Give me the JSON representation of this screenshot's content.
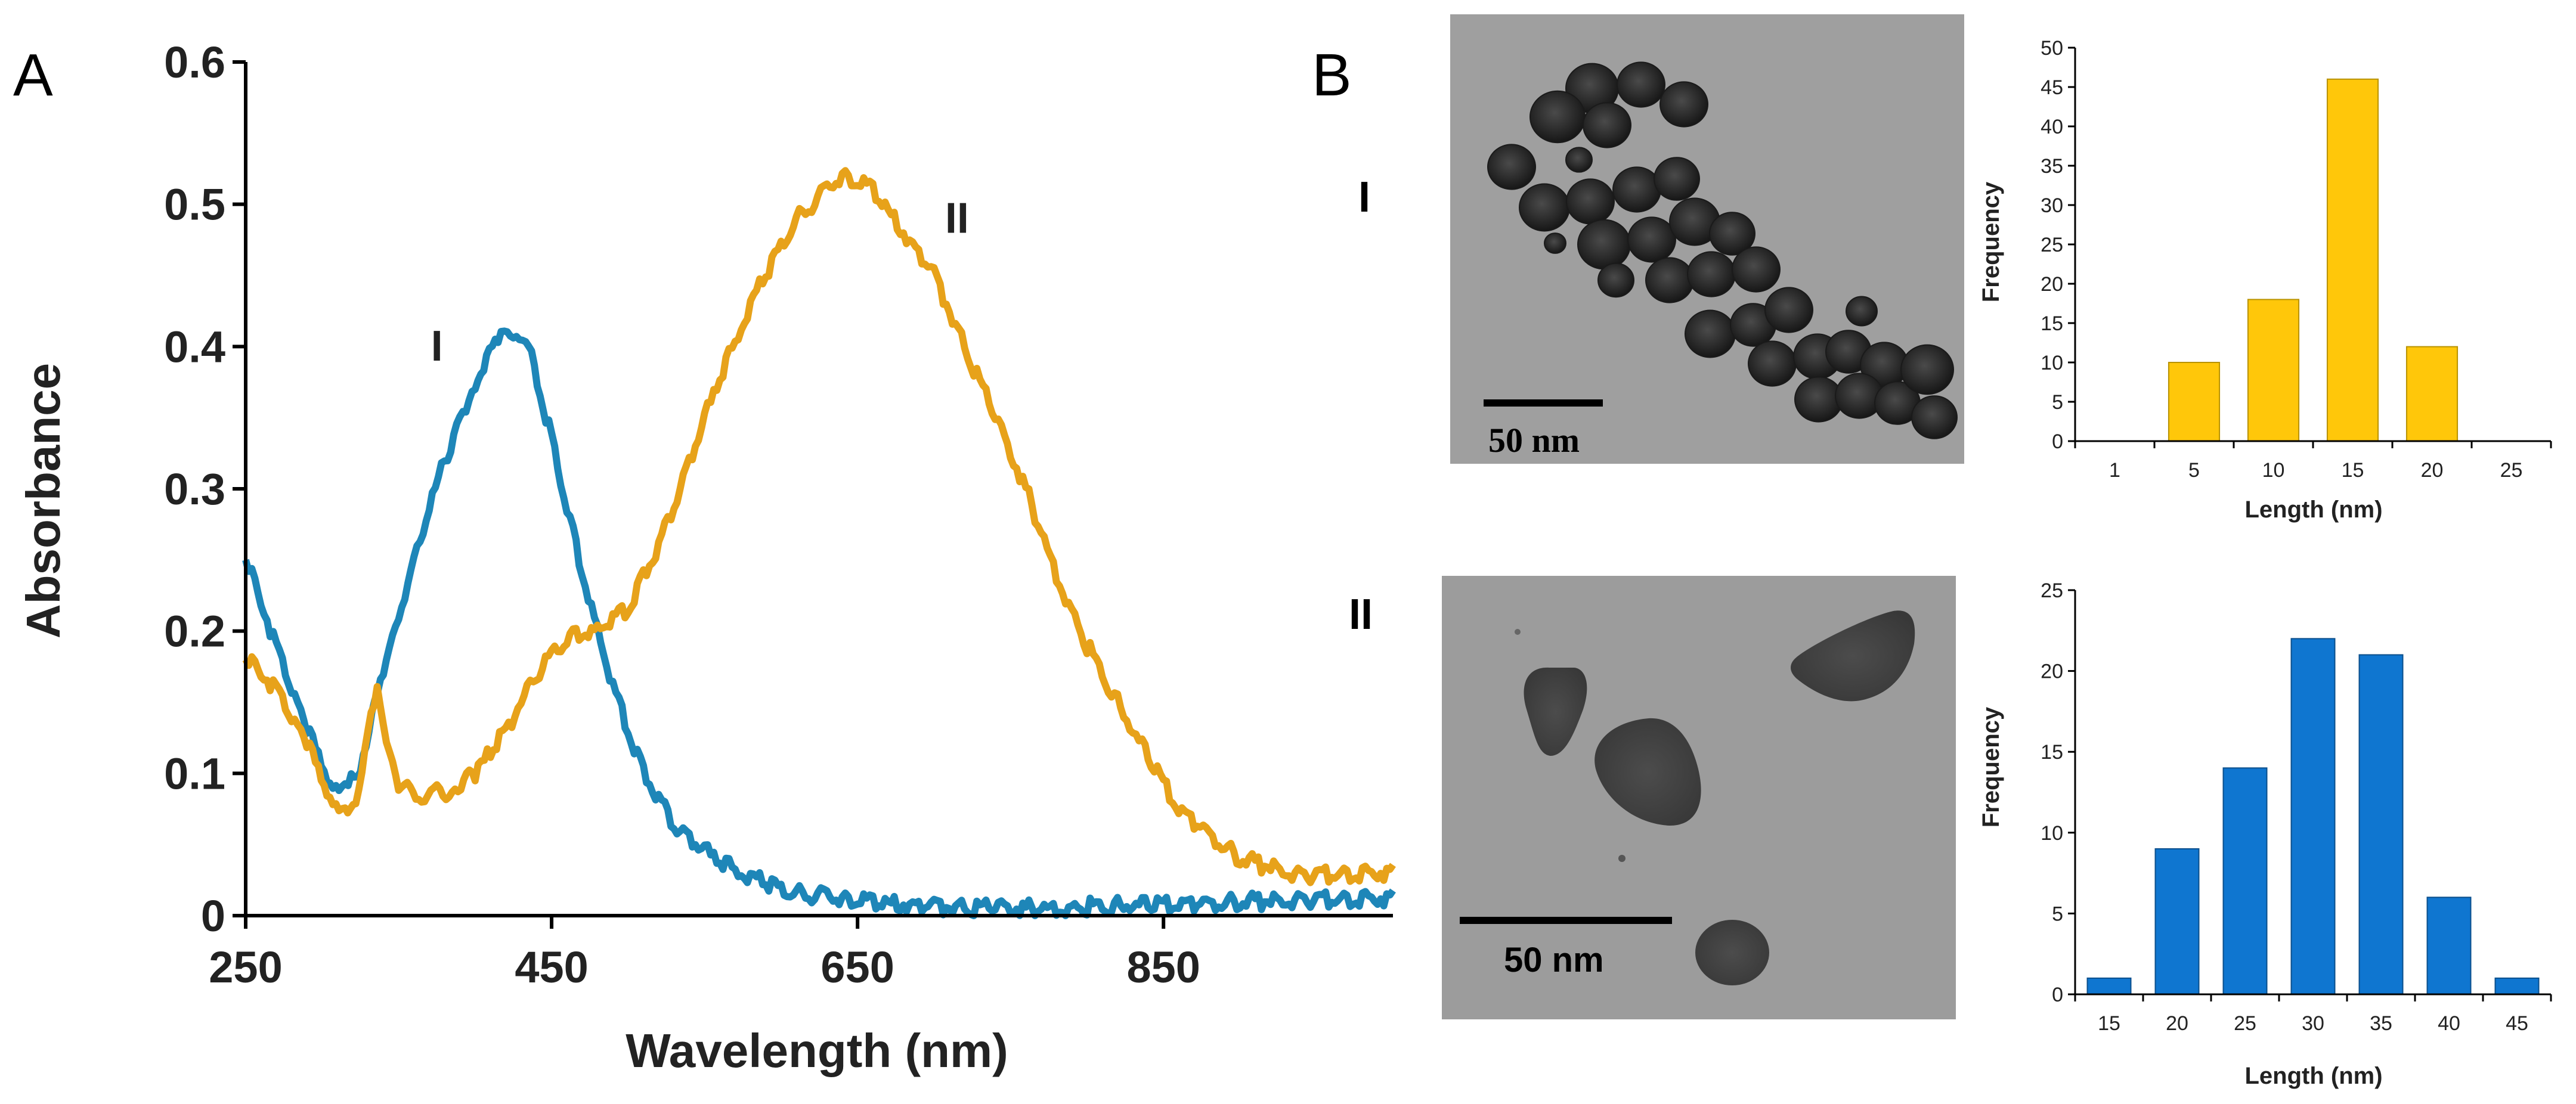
{
  "panels": {
    "a_label": "A",
    "b_label": "B",
    "row1_label": "I",
    "row2_label": "II"
  },
  "colors": {
    "curve_I": "#1E86B8",
    "curve_II": "#E7A21A",
    "hist_I": "#FFC70A",
    "hist_I_edge": "#B89200",
    "hist_II": "#0F76D0",
    "hist_II_edge": "#0B4F8C",
    "tem_bg": "#9a9a9a"
  },
  "images": [
    {
      "kind": "TEM micrograph",
      "particles": "dark roughly spherical nanoparticles (I)",
      "scale_bar": "50 nm"
    },
    {
      "kind": "TEM micrograph",
      "particles": "triangular nanoplates (II)",
      "scale_bar": "50 nm"
    }
  ],
  "chart_data": [
    {
      "type": "line",
      "xlabel": "Wavelength (nm)",
      "ylabel": "Absorbance",
      "xlim": [
        250,
        1000
      ],
      "ylim": [
        0,
        0.6
      ],
      "xticks": [
        250,
        450,
        650,
        850
      ],
      "yticks": [
        0,
        0.1,
        0.2,
        0.3,
        0.4,
        0.5,
        0.6
      ],
      "grid": false,
      "legend": "none",
      "annotations": [
        {
          "text": "I",
          "x": 375,
          "y": 0.39
        },
        {
          "text": "II",
          "x": 715,
          "y": 0.48
        }
      ],
      "series": [
        {
          "name": "I",
          "color": "#1E86B8",
          "x": [
            250,
            270,
            290,
            305,
            315,
            325,
            340,
            360,
            380,
            400,
            415,
            425,
            435,
            450,
            470,
            490,
            510,
            530,
            560,
            600,
            650,
            700,
            760,
            850,
            910,
            1000
          ],
          "y": [
            0.25,
            0.19,
            0.13,
            0.095,
            0.087,
            0.105,
            0.17,
            0.25,
            0.32,
            0.375,
            0.405,
            0.41,
            0.4,
            0.335,
            0.24,
            0.16,
            0.1,
            0.065,
            0.037,
            0.018,
            0.01,
            0.006,
            0.005,
            0.008,
            0.01,
            0.012
          ]
        },
        {
          "name": "II",
          "color": "#E7A21A",
          "x": [
            250,
            270,
            290,
            305,
            315,
            322,
            330,
            336,
            342,
            350,
            365,
            385,
            400,
            420,
            440,
            460,
            480,
            500,
            520,
            550,
            580,
            610,
            640,
            660,
            680,
            700,
            720,
            740,
            760,
            780,
            800,
            830,
            860,
            900,
            940,
            1000
          ],
          "y": [
            0.18,
            0.16,
            0.12,
            0.085,
            0.07,
            0.08,
            0.125,
            0.165,
            0.12,
            0.09,
            0.085,
            0.088,
            0.1,
            0.13,
            0.17,
            0.195,
            0.2,
            0.215,
            0.26,
            0.35,
            0.43,
            0.49,
            0.52,
            0.51,
            0.48,
            0.45,
            0.4,
            0.35,
            0.3,
            0.24,
            0.19,
            0.13,
            0.075,
            0.04,
            0.028,
            0.03
          ]
        }
      ]
    },
    {
      "type": "bar",
      "xlabel": "Length (nm)",
      "ylabel": "Frequency",
      "ylim": [
        0,
        50
      ],
      "yticks": [
        0,
        5,
        10,
        15,
        20,
        25,
        30,
        35,
        40,
        45,
        50
      ],
      "grid": false,
      "categories": [
        "1",
        "5",
        "10",
        "15",
        "20",
        "25"
      ],
      "values": [
        0,
        10,
        18,
        46,
        12,
        0
      ],
      "color": "#FFC70A"
    },
    {
      "type": "bar",
      "xlabel": "Length (nm)",
      "ylabel": "Frequency",
      "ylim": [
        0,
        25
      ],
      "yticks": [
        0,
        5,
        10,
        15,
        20,
        25
      ],
      "grid": false,
      "categories": [
        "15",
        "20",
        "25",
        "30",
        "35",
        "40",
        "45"
      ],
      "values": [
        1,
        9,
        14,
        22,
        21,
        6,
        1
      ],
      "color": "#0F76D0"
    }
  ]
}
